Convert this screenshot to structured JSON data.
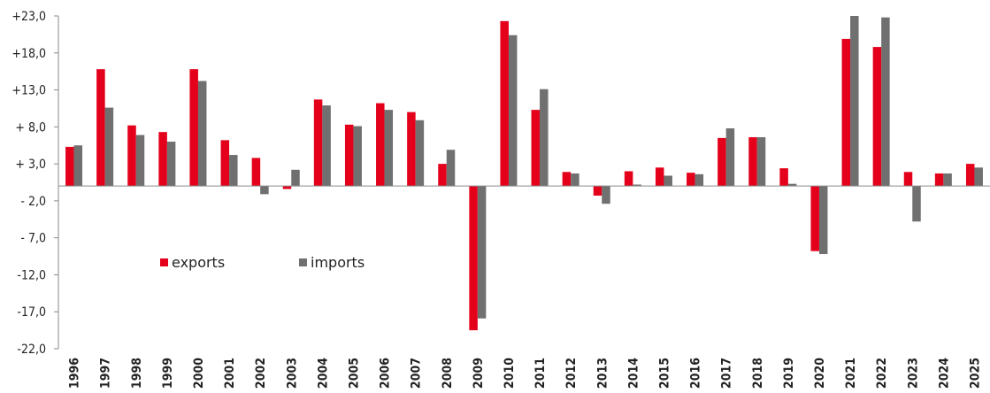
{
  "chart_data": {
    "type": "bar",
    "categories": [
      "1996",
      "1997",
      "1998",
      "1999",
      "2000",
      "2001",
      "2002",
      "2003",
      "2004",
      "2005",
      "2006",
      "2007",
      "2008",
      "2009",
      "2010",
      "2011",
      "2012",
      "2013",
      "2014",
      "2015",
      "2016",
      "2017",
      "2018",
      "2019",
      "2020",
      "2021",
      "2022",
      "2023",
      "2024",
      "2025"
    ],
    "series": [
      {
        "name": "exports",
        "color": "#e4001b",
        "values": [
          5.3,
          15.8,
          8.2,
          7.3,
          15.8,
          6.2,
          3.8,
          -0.4,
          11.7,
          8.3,
          11.2,
          10.0,
          3.0,
          -19.5,
          22.3,
          10.3,
          1.9,
          -1.3,
          2.0,
          2.5,
          1.8,
          6.5,
          6.6,
          2.4,
          -8.8,
          19.9,
          18.8,
          1.9,
          1.7,
          3.0
        ]
      },
      {
        "name": "imports",
        "color": "#707070",
        "values": [
          5.5,
          10.6,
          6.9,
          6.0,
          14.2,
          4.2,
          -1.1,
          2.2,
          10.9,
          8.1,
          10.3,
          8.9,
          4.9,
          -17.9,
          20.4,
          13.1,
          1.7,
          -2.4,
          0.2,
          1.4,
          1.6,
          7.8,
          6.6,
          0.3,
          -9.2,
          23.0,
          22.8,
          -4.8,
          1.7,
          2.5
        ]
      }
    ],
    "y_ticks": [
      "+23,0",
      "+18,0",
      "+13,0",
      "+ 8,0",
      "+ 3,0",
      "- 2,0",
      "- 7,0",
      "-12,0",
      "-17,0",
      "-22,0"
    ],
    "ylim": [
      -22,
      23
    ],
    "title": "",
    "xlabel": "",
    "ylabel": "",
    "grid": false,
    "legend_position": "middle-left"
  }
}
